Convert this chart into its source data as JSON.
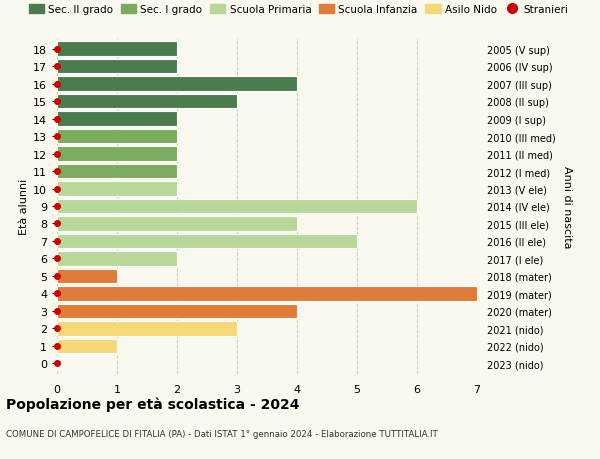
{
  "ages": [
    18,
    17,
    16,
    15,
    14,
    13,
    12,
    11,
    10,
    9,
    8,
    7,
    6,
    5,
    4,
    3,
    2,
    1,
    0
  ],
  "right_labels": [
    "2005 (V sup)",
    "2006 (IV sup)",
    "2007 (III sup)",
    "2008 (II sup)",
    "2009 (I sup)",
    "2010 (III med)",
    "2011 (II med)",
    "2012 (I med)",
    "2013 (V ele)",
    "2014 (IV ele)",
    "2015 (III ele)",
    "2016 (II ele)",
    "2017 (I ele)",
    "2018 (mater)",
    "2019 (mater)",
    "2020 (mater)",
    "2021 (nido)",
    "2022 (nido)",
    "2023 (nido)"
  ],
  "values": [
    2,
    2,
    4,
    3,
    2,
    2,
    2,
    2,
    2,
    6,
    4,
    5,
    2,
    1,
    7,
    4,
    3,
    1,
    0
  ],
  "colors": [
    "#4a7c4e",
    "#4a7c4e",
    "#4a7c4e",
    "#4a7c4e",
    "#4a7c4e",
    "#7aab5e",
    "#7aab5e",
    "#7aab5e",
    "#b8d89a",
    "#b8d89a",
    "#b8d89a",
    "#b8d89a",
    "#b8d89a",
    "#e07b39",
    "#e07b39",
    "#e07b39",
    "#f5d87a",
    "#f5d87a",
    "#f5d87a"
  ],
  "legend_items": [
    {
      "label": "Sec. II grado",
      "color": "#4a7c4e",
      "type": "patch"
    },
    {
      "label": "Sec. I grado",
      "color": "#7aab5e",
      "type": "patch"
    },
    {
      "label": "Scuola Primaria",
      "color": "#b8d89a",
      "type": "patch"
    },
    {
      "label": "Scuola Infanzia",
      "color": "#e07b39",
      "type": "patch"
    },
    {
      "label": "Asilo Nido",
      "color": "#f5d87a",
      "type": "patch"
    },
    {
      "label": "Stranieri",
      "color": "#cc0000",
      "type": "circle"
    }
  ],
  "stranieri_ages": [
    18,
    17,
    16,
    15,
    14,
    13,
    12,
    11,
    10,
    9,
    8,
    7,
    6,
    5,
    4,
    3,
    2,
    1,
    0
  ],
  "ylabel": "Età alunni",
  "right_ylabel": "Anni di nascita",
  "xlim": [
    0,
    7
  ],
  "xticks": [
    0,
    1,
    2,
    3,
    4,
    5,
    6,
    7
  ],
  "title": "Popolazione per età scolastica - 2024",
  "subtitle": "COMUNE DI CAMPOFELICE DI FITALIA (PA) - Dati ISTAT 1° gennaio 2024 - Elaborazione TUTTITALIA.IT",
  "bg_color": "#f9f9f0",
  "bar_height": 0.82
}
